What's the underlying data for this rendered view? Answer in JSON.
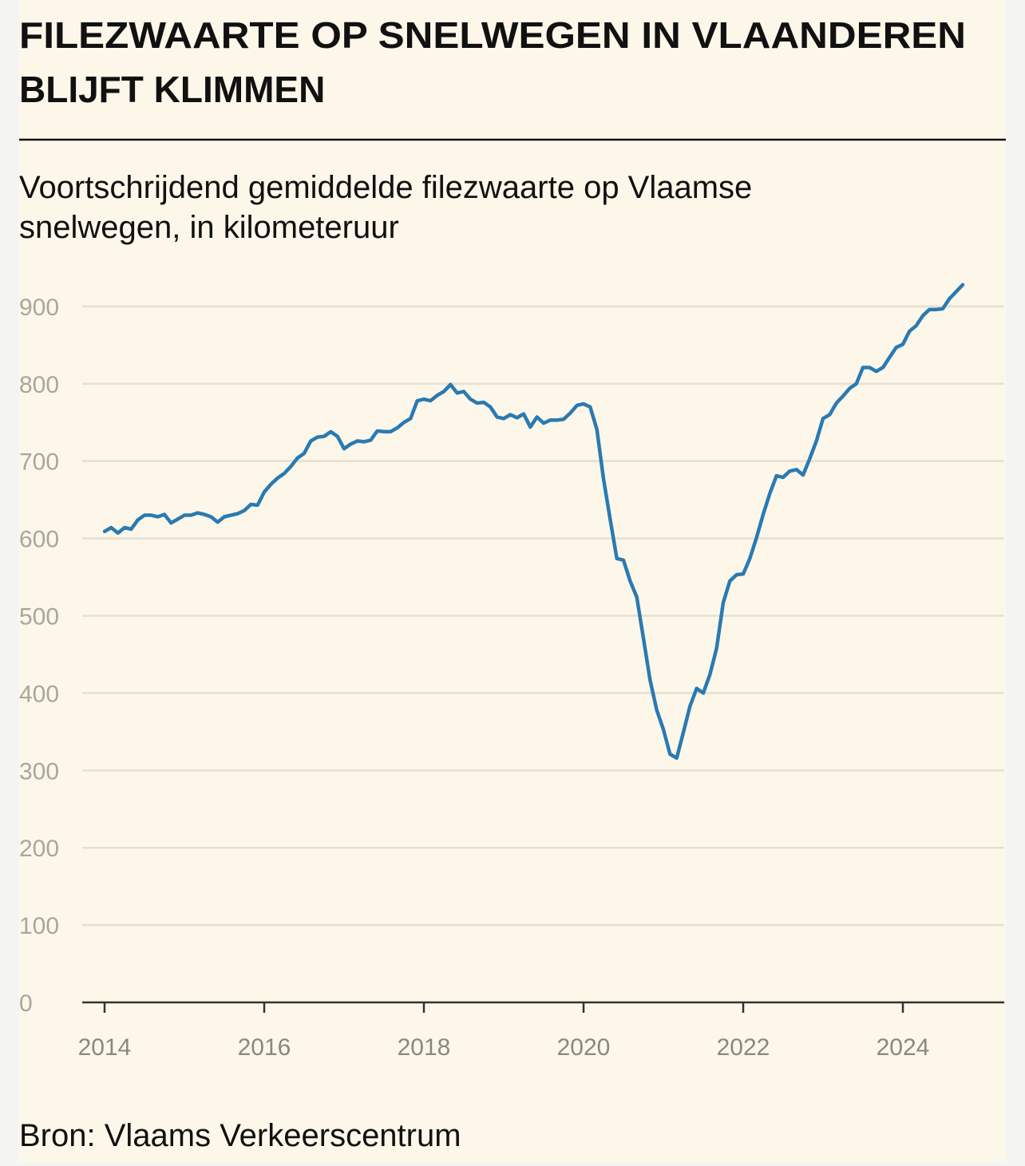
{
  "chart_data": {
    "type": "line",
    "title_lines": [
      "FILEZWAARTE OP SNELWEGEN IN VLAANDEREN",
      "BLIJFT KLIMMEN"
    ],
    "subtitle_lines": [
      "Voortschrijdend gemiddelde filezwaarte op Vlaamse",
      "snelwegen, in kilometeruur"
    ],
    "source": "Bron: Vlaams Verkeerscentrum",
    "color": "#2a7ab2",
    "x": [
      2014,
      2014.083,
      2014.167,
      2014.25,
      2014.333,
      2014.417,
      2014.5,
      2014.583,
      2014.667,
      2014.75,
      2014.833,
      2014.917,
      2015,
      2015.083,
      2015.167,
      2015.25,
      2015.333,
      2015.417,
      2015.5,
      2015.583,
      2015.667,
      2015.75,
      2015.833,
      2015.917,
      2016,
      2016.083,
      2016.167,
      2016.25,
      2016.333,
      2016.417,
      2016.5,
      2016.583,
      2016.667,
      2016.75,
      2016.833,
      2016.917,
      2017,
      2017.083,
      2017.167,
      2017.25,
      2017.333,
      2017.417,
      2017.5,
      2017.583,
      2017.667,
      2017.75,
      2017.833,
      2017.917,
      2018,
      2018.083,
      2018.167,
      2018.25,
      2018.333,
      2018.417,
      2018.5,
      2018.583,
      2018.667,
      2018.75,
      2018.833,
      2018.917,
      2019,
      2019.083,
      2019.167,
      2019.25,
      2019.333,
      2019.417,
      2019.5,
      2019.583,
      2019.667,
      2019.75,
      2019.833,
      2019.917,
      2020,
      2020.083,
      2020.167,
      2020.25,
      2020.333,
      2020.417,
      2020.5,
      2020.583,
      2020.667,
      2020.75,
      2020.833,
      2020.917,
      2021,
      2021.083,
      2021.167,
      2021.25,
      2021.333,
      2021.417,
      2021.5,
      2021.583,
      2021.667,
      2021.75,
      2021.833,
      2021.917,
      2022,
      2022.083,
      2022.167,
      2022.25,
      2022.333,
      2022.417,
      2022.5,
      2022.583,
      2022.667,
      2022.75,
      2022.833,
      2022.917,
      2023,
      2023.083,
      2023.167,
      2023.25,
      2023.333,
      2023.417,
      2023.5,
      2023.583,
      2023.667,
      2023.75,
      2023.833,
      2023.917,
      2024,
      2024.083,
      2024.167,
      2024.25,
      2024.333,
      2024.417,
      2024.5,
      2024.583,
      2024.667,
      2024.75
    ],
    "values": [
      609,
      614,
      607,
      614,
      612,
      624,
      630,
      630,
      628,
      631,
      620,
      625,
      630,
      630,
      633,
      631,
      628,
      621,
      628,
      630,
      632,
      636,
      644,
      643,
      660,
      670,
      678,
      684,
      693,
      704,
      710,
      726,
      731,
      732,
      738,
      732,
      716,
      722,
      726,
      725,
      727,
      739,
      738,
      738,
      743,
      750,
      755,
      778,
      780,
      778,
      785,
      790,
      799,
      788,
      790,
      780,
      775,
      776,
      770,
      757,
      755,
      760,
      756,
      761,
      744,
      757,
      749,
      753,
      753,
      754,
      762,
      772,
      774,
      770,
      741,
      677,
      625,
      574,
      572,
      545,
      524,
      471,
      417,
      378,
      353,
      321,
      316,
      349,
      383,
      406,
      400,
      424,
      458,
      517,
      545,
      553,
      554,
      574,
      601,
      631,
      658,
      681,
      679,
      687,
      689,
      682,
      703,
      726,
      755,
      760,
      775,
      784,
      794,
      800,
      821,
      821,
      816,
      821,
      834,
      847,
      851,
      868,
      875,
      888,
      896,
      896,
      897,
      910,
      919,
      928
    ],
    "xlim": [
      2013.72,
      2025.27
    ],
    "xticks": [
      2014,
      2016,
      2018,
      2020,
      2022,
      2024
    ],
    "ylim": [
      0,
      950
    ],
    "yticks": [
      0,
      100,
      200,
      300,
      400,
      500,
      600,
      700,
      800,
      900
    ],
    "grid": true
  }
}
